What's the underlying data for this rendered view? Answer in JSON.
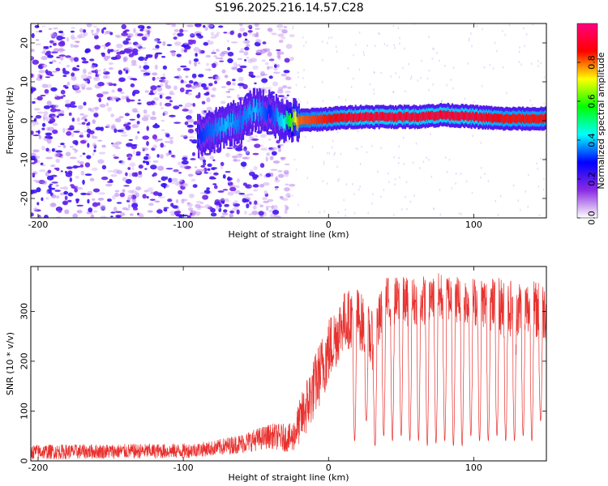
{
  "title": "S196.2025.216.14.57.C28",
  "chart_data": [
    {
      "type": "heatmap",
      "xlabel": "Height of straight line (km)",
      "ylabel": "Frequency (Hz)",
      "xlim": [
        -205,
        150
      ],
      "ylim": [
        -25,
        25
      ],
      "x_ticks": [
        -200,
        -100,
        0,
        100
      ],
      "y_ticks": [
        -20,
        -10,
        0,
        10,
        20
      ],
      "colorbar": {
        "label": "Normalized spectral amplitude",
        "range": [
          0,
          1
        ],
        "ticks": [
          "0.0",
          "0.2",
          "0.4",
          "0.6",
          "0.8"
        ],
        "tick_values": [
          0,
          0.2,
          0.4,
          0.6,
          0.8
        ],
        "colors": [
          "#ffffff",
          "#8a2be2",
          "#0000ff",
          "#00ffff",
          "#00ff00",
          "#ffff00",
          "#ff0000",
          "#ff0080"
        ]
      },
      "noise_region_x": [
        -205,
        -25
      ],
      "ridge": {
        "x": [
          -90,
          -80,
          -70,
          -60,
          -50,
          -40,
          -30,
          -20,
          0,
          20,
          40,
          60,
          80,
          100,
          120,
          150
        ],
        "freq_hz": [
          -4,
          -3,
          -1,
          0,
          3,
          2,
          0,
          0,
          0.5,
          1,
          1,
          1,
          1.5,
          1,
          0.5,
          0.5
        ],
        "amplitude": [
          0.3,
          0.35,
          0.4,
          0.35,
          0.4,
          0.3,
          0.45,
          0.8,
          0.85,
          0.9,
          0.9,
          0.9,
          0.9,
          0.9,
          0.85,
          0.85
        ]
      }
    },
    {
      "type": "line",
      "xlabel": "Height of straight line (km)",
      "ylabel": "SNR (10 * v/v)",
      "xlim": [
        -205,
        150
      ],
      "ylim": [
        0,
        390
      ],
      "x_ticks": [
        -200,
        -100,
        0,
        100
      ],
      "y_ticks": [
        0,
        100,
        200,
        300
      ],
      "color": "#e8312e",
      "envelope": {
        "x": [
          -205,
          -100,
          -80,
          -60,
          -40,
          -25,
          -15,
          0,
          10,
          20,
          30,
          40,
          60,
          80,
          100,
          120,
          150
        ],
        "y_base": [
          18,
          20,
          25,
          35,
          50,
          45,
          110,
          220,
          280,
          290,
          240,
          320,
          320,
          330,
          320,
          310,
          300
        ],
        "y_noise": [
          15,
          15,
          15,
          20,
          25,
          30,
          60,
          70,
          60,
          60,
          60,
          50,
          50,
          50,
          50,
          60,
          60
        ]
      },
      "dropout_x": [
        18,
        26,
        32,
        38,
        44,
        50,
        56,
        62,
        68,
        74,
        80,
        86,
        92,
        98,
        104,
        110,
        116,
        122,
        128,
        134,
        140,
        146
      ],
      "dropout_floor": [
        40,
        80,
        30,
        50,
        40,
        50,
        40,
        40,
        30,
        35,
        40,
        30,
        30,
        50,
        40,
        40,
        50,
        40,
        40,
        50,
        40,
        80
      ]
    }
  ]
}
